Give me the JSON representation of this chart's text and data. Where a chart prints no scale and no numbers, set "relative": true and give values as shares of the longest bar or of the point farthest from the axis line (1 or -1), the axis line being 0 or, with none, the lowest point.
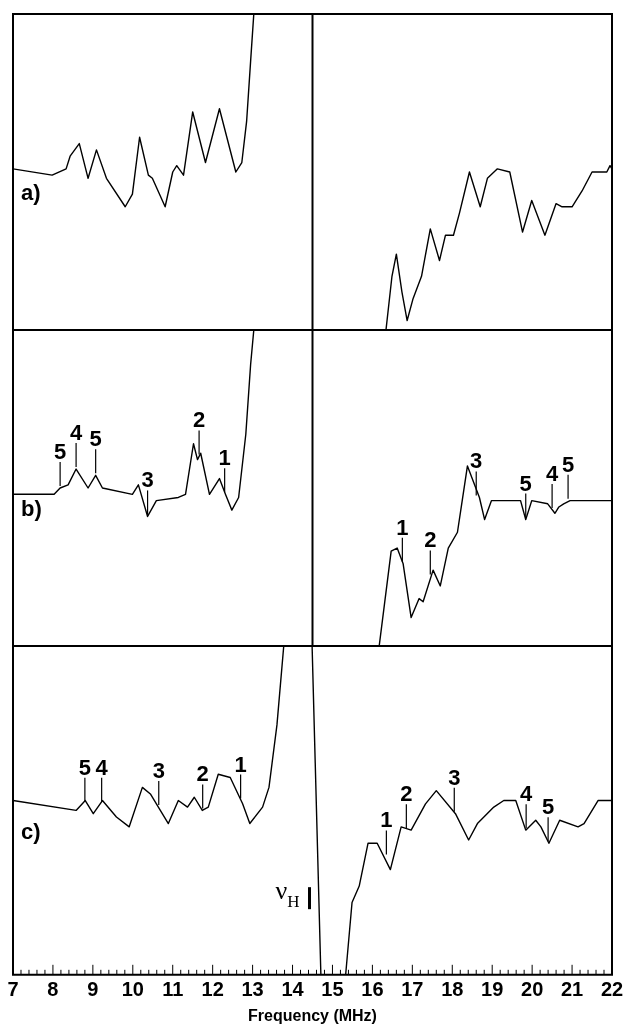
{
  "chart_data": [
    {
      "type": "line",
      "title": "a)",
      "relative": true,
      "xlim": [
        7,
        22
      ],
      "tick_labels": false,
      "marker": "none",
      "series": [
        {
          "color": "#000000",
          "x": [
            7.0,
            7.98,
            8.33,
            8.43,
            8.66,
            8.88,
            9.09,
            9.34,
            9.81,
            9.99,
            10.17,
            10.39,
            10.49,
            10.81,
            11.0,
            11.1,
            11.27,
            11.5,
            11.82,
            12.17,
            12.58,
            12.73,
            12.85,
            12.95,
            13.03,
            14.5,
            16.34,
            16.49,
            16.6,
            16.74,
            16.87,
            17.02,
            17.23,
            17.45,
            17.68,
            17.83,
            18.03,
            18.18,
            18.43,
            18.7,
            18.88,
            19.13,
            19.44,
            19.76,
            19.99,
            20.32,
            20.6,
            20.75,
            21.0,
            21.25,
            21.5,
            21.87,
            21.95,
            22.0
          ],
          "values": [
            0.51,
            0.49,
            0.51,
            0.55,
            0.59,
            0.48,
            0.57,
            0.48,
            0.39,
            0.43,
            0.61,
            0.49,
            0.48,
            0.39,
            0.5,
            0.52,
            0.49,
            0.69,
            0.53,
            0.7,
            0.5,
            0.53,
            0.66,
            0.85,
            1,
            null,
            0,
            0.17,
            0.24,
            0.12,
            0.03,
            0.1,
            0.17,
            0.32,
            0.22,
            0.3,
            0.3,
            0.37,
            0.5,
            0.39,
            0.48,
            0.51,
            0.5,
            0.31,
            0.41,
            0.3,
            0.4,
            0.39,
            0.39,
            0.44,
            0.5,
            0.5,
            0.52,
            0.51
          ]
        }
      ],
      "ref_lines": [
        {
          "axis": "x",
          "value": 14.5,
          "color": "#000000"
        }
      ]
    },
    {
      "type": "line",
      "title": "b)",
      "relative": true,
      "xlim": [
        7,
        22
      ],
      "tick_labels": false,
      "marker": "none",
      "series": [
        {
          "color": "#000000",
          "x": [
            7.0,
            8.03,
            8.18,
            8.38,
            8.58,
            8.88,
            9.07,
            9.24,
            9.99,
            10.14,
            10.37,
            10.59,
            11.14,
            11.32,
            11.52,
            11.62,
            11.7,
            11.92,
            12.17,
            12.32,
            12.48,
            12.65,
            12.83,
            12.95,
            13.03,
            14.5,
            16.17,
            16.3,
            16.47,
            16.62,
            16.77,
            16.97,
            17.17,
            17.27,
            17.52,
            17.7,
            17.9,
            18.13,
            18.38,
            18.68,
            18.81,
            18.98,
            19.54,
            19.71,
            19.84,
            19.99,
            20.39,
            20.57,
            20.67,
            20.79,
            20.95,
            22.0
          ],
          "values": [
            0.48,
            0.48,
            0.5,
            0.51,
            0.56,
            0.5,
            0.54,
            0.5,
            0.48,
            0.51,
            0.41,
            0.46,
            0.47,
            0.48,
            0.64,
            0.59,
            0.61,
            0.48,
            0.53,
            0.48,
            0.43,
            0.47,
            0.67,
            0.89,
            1,
            null,
            0,
            0.13,
            0.3,
            0.31,
            0.26,
            0.09,
            0.15,
            0.14,
            0.24,
            0.19,
            0.31,
            0.36,
            0.57,
            0.47,
            0.4,
            0.46,
            0.46,
            0.46,
            0.4,
            0.46,
            0.45,
            0.42,
            0.44,
            0.45,
            0.46,
            0.46
          ]
        }
      ],
      "ref_lines": [
        {
          "axis": "x",
          "value": 14.5,
          "color": "#000000"
        }
      ],
      "annotations": [
        {
          "text": "5",
          "x": 8.18,
          "y": 0.5
        },
        {
          "text": "4",
          "x": 8.58,
          "y": 0.56
        },
        {
          "text": "5",
          "x": 9.07,
          "y": 0.54
        },
        {
          "text": "3",
          "x": 10.37,
          "y": 0.41
        },
        {
          "text": "2",
          "x": 11.66,
          "y": 0.6
        },
        {
          "text": "1",
          "x": 12.3,
          "y": 0.48
        },
        {
          "text": "1",
          "x": 16.75,
          "y": 0.26
        },
        {
          "text": "2",
          "x": 17.45,
          "y": 0.22
        },
        {
          "text": "3",
          "x": 18.6,
          "y": 0.47
        },
        {
          "text": "5",
          "x": 19.84,
          "y": 0.4
        },
        {
          "text": "4",
          "x": 20.5,
          "y": 0.43
        },
        {
          "text": "5",
          "x": 20.9,
          "y": 0.46
        }
      ]
    },
    {
      "type": "line",
      "title": "c)",
      "relative": true,
      "xlim": [
        7,
        22
      ],
      "tick_labels": "x",
      "marker": "none",
      "xlabel": "Frequency (MHz)",
      "xticks": [
        7,
        {
          "value": 7.2,
          "label": null
        },
        {
          "value": 7.4,
          "label": null
        },
        {
          "value": 7.6,
          "label": null
        },
        {
          "value": 7.8,
          "label": null
        },
        8,
        {
          "value": 8.2,
          "label": null
        },
        {
          "value": 8.4,
          "label": null
        },
        {
          "value": 8.6,
          "label": null
        },
        {
          "value": 8.8,
          "label": null
        },
        9,
        {
          "value": 9.2,
          "label": null
        },
        {
          "value": 9.4,
          "label": null
        },
        {
          "value": 9.6,
          "label": null
        },
        {
          "value": 9.8,
          "label": null
        },
        10,
        {
          "value": 10.2,
          "label": null
        },
        {
          "value": 10.4,
          "label": null
        },
        {
          "value": 10.6,
          "label": null
        },
        {
          "value": 10.8,
          "label": null
        },
        11,
        {
          "value": 11.2,
          "label": null
        },
        {
          "value": 11.4,
          "label": null
        },
        {
          "value": 11.6,
          "label": null
        },
        {
          "value": 11.8,
          "label": null
        },
        12,
        {
          "value": 12.2,
          "label": null
        },
        {
          "value": 12.4,
          "label": null
        },
        {
          "value": 12.6,
          "label": null
        },
        {
          "value": 12.8,
          "label": null
        },
        13,
        {
          "value": 13.2,
          "label": null
        },
        {
          "value": 13.4,
          "label": null
        },
        {
          "value": 13.6,
          "label": null
        },
        {
          "value": 13.8,
          "label": null
        },
        14,
        {
          "value": 14.2,
          "label": null
        },
        {
          "value": 14.4,
          "label": null
        },
        {
          "value": 14.6,
          "label": null
        },
        {
          "value": 14.8,
          "label": null
        },
        15,
        {
          "value": 15.2,
          "label": null
        },
        {
          "value": 15.4,
          "label": null
        },
        {
          "value": 15.6,
          "label": null
        },
        {
          "value": 15.8,
          "label": null
        },
        16,
        {
          "value": 16.2,
          "label": null
        },
        {
          "value": 16.4,
          "label": null
        },
        {
          "value": 16.6,
          "label": null
        },
        {
          "value": 16.8,
          "label": null
        },
        17,
        {
          "value": 17.2,
          "label": null
        },
        {
          "value": 17.4,
          "label": null
        },
        {
          "value": 17.6,
          "label": null
        },
        {
          "value": 17.8,
          "label": null
        },
        18,
        {
          "value": 18.2,
          "label": null
        },
        {
          "value": 18.4,
          "label": null
        },
        {
          "value": 18.6,
          "label": null
        },
        {
          "value": 18.8,
          "label": null
        },
        19,
        {
          "value": 19.2,
          "label": null
        },
        {
          "value": 19.4,
          "label": null
        },
        {
          "value": 19.6,
          "label": null
        },
        {
          "value": 19.8,
          "label": null
        },
        20,
        {
          "value": 20.2,
          "label": null
        },
        {
          "value": 20.4,
          "label": null
        },
        {
          "value": 20.6,
          "label": null
        },
        {
          "value": 20.8,
          "label": null
        },
        21,
        {
          "value": 21.2,
          "label": null
        },
        {
          "value": 21.4,
          "label": null
        },
        {
          "value": 21.6,
          "label": null
        },
        {
          "value": 21.8,
          "label": null
        },
        22
      ],
      "series": [
        {
          "color": "#000000",
          "x": [
            7.0,
            8.58,
            8.81,
            9.01,
            9.24,
            9.59,
            9.91,
            10.24,
            10.44,
            10.64,
            10.89,
            11.14,
            11.37,
            11.54,
            11.74,
            11.89,
            12.14,
            12.44,
            12.75,
            12.93,
            13.25,
            13.41,
            13.61,
            13.78,
            14.0,
            14.49,
            14.71,
            15.0,
            15.33,
            15.49,
            15.67,
            15.89,
            16.12,
            16.45,
            16.72,
            16.97,
            17.33,
            17.6,
            18.08,
            18.41,
            18.63,
            19.04,
            19.29,
            19.59,
            19.84,
            20.09,
            20.22,
            20.42,
            20.69,
            21.15,
            21.3,
            21.65,
            22.0
          ],
          "values": [
            0.53,
            0.5,
            0.53,
            0.49,
            0.53,
            0.48,
            0.45,
            0.57,
            0.55,
            0.51,
            0.46,
            0.53,
            0.51,
            0.54,
            0.5,
            0.51,
            0.61,
            0.6,
            0.52,
            0.46,
            0.51,
            0.57,
            0.76,
            1,
            null,
            1,
            0,
            null,
            0,
            0.22,
            0.27,
            0.4,
            0.4,
            0.32,
            0.45,
            0.44,
            0.52,
            0.56,
            0.49,
            0.41,
            0.46,
            0.51,
            0.53,
            0.53,
            0.44,
            0.47,
            0.45,
            0.4,
            0.47,
            0.45,
            0.46,
            0.53,
            0.53
          ]
        }
      ],
      "annotations": [
        {
          "text": "5",
          "x": 8.8,
          "y": 0.52
        },
        {
          "text": "4",
          "x": 9.22,
          "y": 0.52
        },
        {
          "text": "3",
          "x": 10.65,
          "y": 0.51
        },
        {
          "text": "2",
          "x": 11.75,
          "y": 0.5
        },
        {
          "text": "1",
          "x": 12.7,
          "y": 0.53
        },
        {
          "text": "1",
          "x": 16.35,
          "y": 0.36
        },
        {
          "text": "2",
          "x": 16.85,
          "y": 0.44
        },
        {
          "text": "3",
          "x": 18.05,
          "y": 0.49
        },
        {
          "text": "4",
          "x": 19.85,
          "y": 0.44
        },
        {
          "text": "5",
          "x": 20.4,
          "y": 0.4
        },
        "ν$_{H}$"
      ]
    }
  ]
}
